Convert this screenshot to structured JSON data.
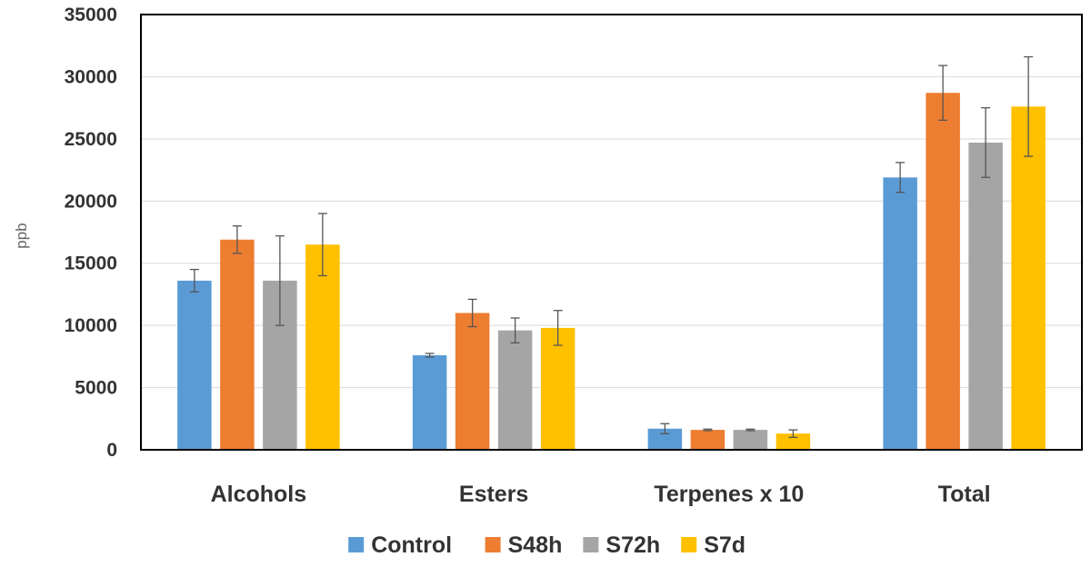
{
  "chart_data": {
    "type": "bar",
    "title": "",
    "xlabel": "",
    "ylabel": "ppb",
    "ylim": [
      0,
      35000
    ],
    "yticks": [
      0,
      5000,
      10000,
      15000,
      20000,
      25000,
      30000,
      35000
    ],
    "yticks_labels": [
      "0",
      "5000",
      "10000",
      "15000",
      "20000",
      "25000",
      "30000",
      "35000"
    ],
    "grid": true,
    "legend_position": "bottom",
    "categories": [
      "Alcohols",
      "Esters",
      "Terpenes x 10",
      "Total"
    ],
    "series": [
      {
        "name": "Control",
        "color": "#5B9BD5",
        "values": [
          13600,
          7600,
          1700,
          21900
        ],
        "errors": [
          900,
          150,
          400,
          1200
        ]
      },
      {
        "name": "S48h",
        "color": "#ED7D31",
        "values": [
          16900,
          11000,
          1600,
          28700
        ],
        "errors": [
          1100,
          1100,
          60,
          2200
        ]
      },
      {
        "name": "S72h",
        "color": "#A5A5A5",
        "values": [
          13600,
          9600,
          1600,
          24700
        ],
        "errors": [
          3600,
          1000,
          60,
          2800
        ]
      },
      {
        "name": "S7d",
        "color": "#FFC000",
        "values": [
          16500,
          9800,
          1300,
          27600
        ],
        "errors": [
          2500,
          1400,
          300,
          4000
        ]
      }
    ]
  }
}
